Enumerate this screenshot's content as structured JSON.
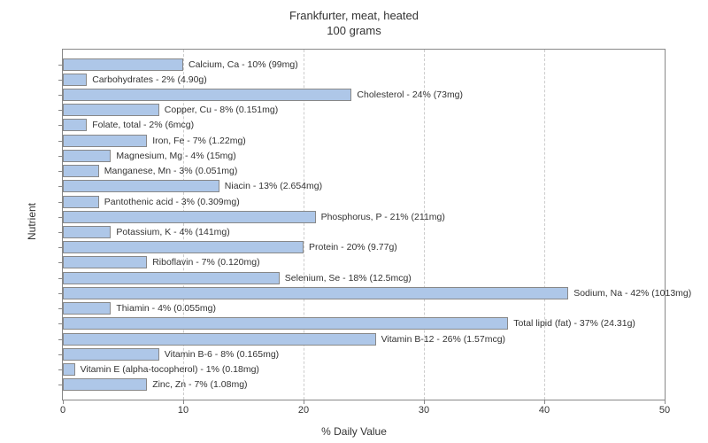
{
  "chart": {
    "type": "bar",
    "title_line1": "Frankfurter, meat, heated",
    "title_line2": "100 grams",
    "title_fontsize": 13,
    "x_axis_label": "% Daily Value",
    "y_axis_label": "Nutrient",
    "label_fontsize": 12,
    "xlim": [
      0,
      50
    ],
    "xtick_step": 10,
    "xticks": [
      0,
      10,
      20,
      30,
      40,
      50
    ],
    "background_color": "#ffffff",
    "grid_color": "#cccccc",
    "bar_color": "#aec7e8",
    "bar_border_color": "#888888",
    "plot_border_color": "#888888",
    "text_color": "#333333",
    "bar_label_fontsize": 10.5,
    "tick_fontsize": 11,
    "nutrients": [
      {
        "label": "Calcium, Ca - 10% (99mg)",
        "value": 10
      },
      {
        "label": "Carbohydrates - 2% (4.90g)",
        "value": 2
      },
      {
        "label": "Cholesterol - 24% (73mg)",
        "value": 24
      },
      {
        "label": "Copper, Cu - 8% (0.151mg)",
        "value": 8
      },
      {
        "label": "Folate, total - 2% (6mcg)",
        "value": 2
      },
      {
        "label": "Iron, Fe - 7% (1.22mg)",
        "value": 7
      },
      {
        "label": "Magnesium, Mg - 4% (15mg)",
        "value": 4
      },
      {
        "label": "Manganese, Mn - 3% (0.051mg)",
        "value": 3
      },
      {
        "label": "Niacin - 13% (2.654mg)",
        "value": 13
      },
      {
        "label": "Pantothenic acid - 3% (0.309mg)",
        "value": 3
      },
      {
        "label": "Phosphorus, P - 21% (211mg)",
        "value": 21
      },
      {
        "label": "Potassium, K - 4% (141mg)",
        "value": 4
      },
      {
        "label": "Protein - 20% (9.77g)",
        "value": 20
      },
      {
        "label": "Riboflavin - 7% (0.120mg)",
        "value": 7
      },
      {
        "label": "Selenium, Se - 18% (12.5mcg)",
        "value": 18
      },
      {
        "label": "Sodium, Na - 42% (1013mg)",
        "value": 42
      },
      {
        "label": "Thiamin - 4% (0.055mg)",
        "value": 4
      },
      {
        "label": "Total lipid (fat) - 37% (24.31g)",
        "value": 37
      },
      {
        "label": "Vitamin B-12 - 26% (1.57mcg)",
        "value": 26
      },
      {
        "label": "Vitamin B-6 - 8% (0.165mg)",
        "value": 8
      },
      {
        "label": "Vitamin E (alpha-tocopherol) - 1% (0.18mg)",
        "value": 1
      },
      {
        "label": "Zinc, Zn - 7% (1.08mg)",
        "value": 7
      }
    ]
  }
}
